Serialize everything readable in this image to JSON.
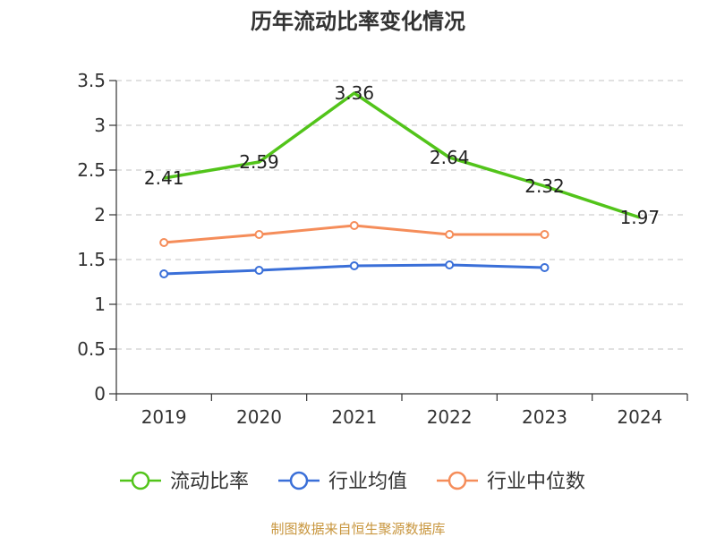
{
  "chart_data": {
    "type": "line",
    "title": "历年流动比率变化情况",
    "categories": [
      "2019",
      "2020",
      "2021",
      "2022",
      "2023",
      "2024"
    ],
    "ylim": [
      0,
      3.5
    ],
    "yticks": [
      0,
      0.5,
      1,
      1.5,
      2,
      2.5,
      3,
      3.5
    ],
    "ytick_labels": [
      "0",
      "0.5",
      "1",
      "1.5",
      "2",
      "2.5",
      "3",
      "3.5"
    ],
    "grid": true,
    "legend_position": "bottom",
    "series": [
      {
        "name": "流动比率",
        "color": "#52c41a",
        "values": [
          2.41,
          2.59,
          3.36,
          2.64,
          2.32,
          1.97
        ],
        "labels": [
          "2.41",
          "2.59",
          "3.36",
          "2.64",
          "2.32",
          "1.97"
        ]
      },
      {
        "name": "行业均值",
        "color": "#3a6fd8",
        "values": [
          1.34,
          1.38,
          1.43,
          1.44,
          1.41,
          null
        ]
      },
      {
        "name": "行业中位数",
        "color": "#f58d5a",
        "values": [
          1.69,
          1.78,
          1.88,
          1.78,
          1.78,
          null
        ]
      }
    ]
  },
  "source": "制图数据来自恒生聚源数据库"
}
